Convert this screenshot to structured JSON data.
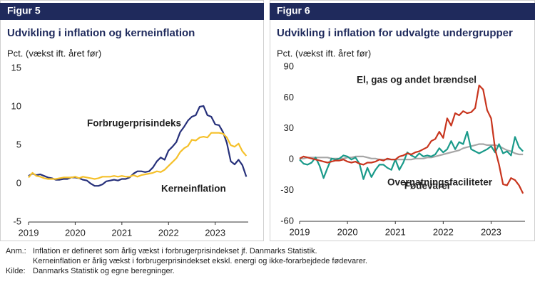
{
  "chart_data": [
    {
      "type": "line",
      "label": "Figur 5",
      "title": "Udvikling i inflation og kerneinflation",
      "y_label": "Pct. (vækst ift. året før)",
      "categories": [
        "2019",
        null,
        null,
        null,
        null,
        null,
        null,
        null,
        null,
        null,
        null,
        null,
        "2020",
        null,
        null,
        null,
        null,
        null,
        null,
        null,
        null,
        null,
        null,
        null,
        "2021",
        null,
        null,
        null,
        null,
        null,
        null,
        null,
        null,
        null,
        null,
        null,
        "2022",
        null,
        null,
        null,
        null,
        null,
        null,
        null,
        null,
        null,
        null,
        null,
        "2023",
        null,
        null,
        null,
        null,
        null,
        null,
        null,
        null
      ],
      "ylim": [
        -5,
        15
      ],
      "yticks": [
        -5,
        0,
        5,
        10,
        15
      ],
      "series": [
        {
          "name": "Forbrugerprisindeks",
          "color": "#26307a",
          "values": [
            1.0,
            1.3,
            1.1,
            1.2,
            1.0,
            0.8,
            0.7,
            0.5,
            0.5,
            0.6,
            0.6,
            0.8,
            0.8,
            0.7,
            0.5,
            0.4,
            0.0,
            -0.3,
            -0.3,
            -0.1,
            0.3,
            0.4,
            0.5,
            0.4,
            0.6,
            0.6,
            0.8,
            1.3,
            1.6,
            1.6,
            1.5,
            1.6,
            2.1,
            2.9,
            3.4,
            3.1,
            4.3,
            4.8,
            5.4,
            6.7,
            7.4,
            8.2,
            8.7,
            8.9,
            10.0,
            10.1,
            8.9,
            8.7,
            7.7,
            7.6,
            6.7,
            5.3,
            2.9,
            2.5,
            3.1,
            2.4,
            0.9
          ]
        },
        {
          "name": "Kerneinflation",
          "color": "#f5c02a",
          "values": [
            0.8,
            1.4,
            1.0,
            0.9,
            0.7,
            0.6,
            0.6,
            0.6,
            0.7,
            0.8,
            0.8,
            0.8,
            0.9,
            0.7,
            0.9,
            0.8,
            0.7,
            0.6,
            0.7,
            0.9,
            0.9,
            0.9,
            1.0,
            0.9,
            1.0,
            0.9,
            0.9,
            1.1,
            0.9,
            1.1,
            1.2,
            1.3,
            1.4,
            1.6,
            1.5,
            1.8,
            2.3,
            2.8,
            3.3,
            4.1,
            4.6,
            4.9,
            5.7,
            5.6,
            6.0,
            6.1,
            6.0,
            6.6,
            6.6,
            6.6,
            6.5,
            6.0,
            5.0,
            4.8,
            5.2,
            4.2,
            3.6
          ]
        }
      ]
    },
    {
      "type": "line",
      "label": "Figur 6",
      "title": "Udvikling i inflation for udvalgte undergrupper",
      "y_label": "Pct. (vækst ift. året før)",
      "categories": [
        "2019",
        null,
        null,
        null,
        null,
        null,
        null,
        null,
        null,
        null,
        null,
        null,
        "2020",
        null,
        null,
        null,
        null,
        null,
        null,
        null,
        null,
        null,
        null,
        null,
        "2021",
        null,
        null,
        null,
        null,
        null,
        null,
        null,
        null,
        null,
        null,
        null,
        "2022",
        null,
        null,
        null,
        null,
        null,
        null,
        null,
        null,
        null,
        null,
        null,
        "2023",
        null,
        null,
        null,
        null,
        null,
        null,
        null,
        null
      ],
      "ylim": [
        -60,
        90
      ],
      "yticks": [
        -60,
        -30,
        0,
        30,
        60,
        90
      ],
      "series": [
        {
          "name": "Fødevarer",
          "color": "#a6a6a6",
          "values": [
            1,
            1,
            2,
            2,
            2,
            2,
            2,
            2,
            1,
            1,
            1,
            1,
            2,
            2,
            3,
            3,
            3,
            2,
            1,
            1,
            0,
            0,
            0,
            0,
            0,
            0,
            0,
            0,
            0,
            1,
            1,
            1,
            2,
            2,
            3,
            4,
            5,
            6,
            7,
            8,
            9,
            11,
            12,
            13,
            14,
            15,
            15,
            14,
            14,
            14,
            13,
            11,
            9,
            8,
            6,
            5,
            5
          ]
        },
        {
          "name": "Overnatningsfaciliteter",
          "color": "#1a9a8a",
          "values": [
            0,
            -4,
            -5,
            -3,
            2,
            -6,
            -18,
            -8,
            1,
            0,
            1,
            4,
            3,
            0,
            2,
            -4,
            -19,
            -8,
            -17,
            -10,
            -5,
            -5,
            -8,
            -10,
            0,
            -10,
            -3,
            7,
            4,
            2,
            6,
            3,
            4,
            3,
            5,
            11,
            7,
            10,
            18,
            10,
            17,
            15,
            27,
            10,
            8,
            6,
            8,
            10,
            13,
            7,
            15,
            6,
            8,
            4,
            22,
            12,
            8
          ]
        },
        {
          "name": "El, gas og andet brændsel",
          "color": "#c8351e",
          "values": [
            1,
            3,
            2,
            1,
            0,
            -1,
            -2,
            -3,
            -2,
            -1,
            -1,
            0,
            -2,
            -3,
            -2,
            -4,
            -5,
            -3,
            -3,
            -2,
            0,
            -1,
            1,
            0,
            0,
            3,
            4,
            6,
            5,
            7,
            8,
            10,
            12,
            18,
            20,
            27,
            21,
            40,
            33,
            45,
            43,
            47,
            45,
            46,
            50,
            72,
            68,
            48,
            40,
            10,
            -5,
            -24,
            -25,
            -18,
            -20,
            -25,
            -33
          ]
        }
      ]
    }
  ],
  "notes": [
    {
      "label": "Anm.:",
      "lines": [
        "Inflation er defineret som årlig vækst i forbrugerprisindekset jf. Danmarks Statistik.",
        "Kerneinflation er årlig vækst i forbrugerprisindekset ekskl. energi og ikke-forarbejdede fødevarer."
      ]
    },
    {
      "label": "Kilde:",
      "lines": [
        "Danmarks Statistik og egne beregninger."
      ]
    }
  ]
}
